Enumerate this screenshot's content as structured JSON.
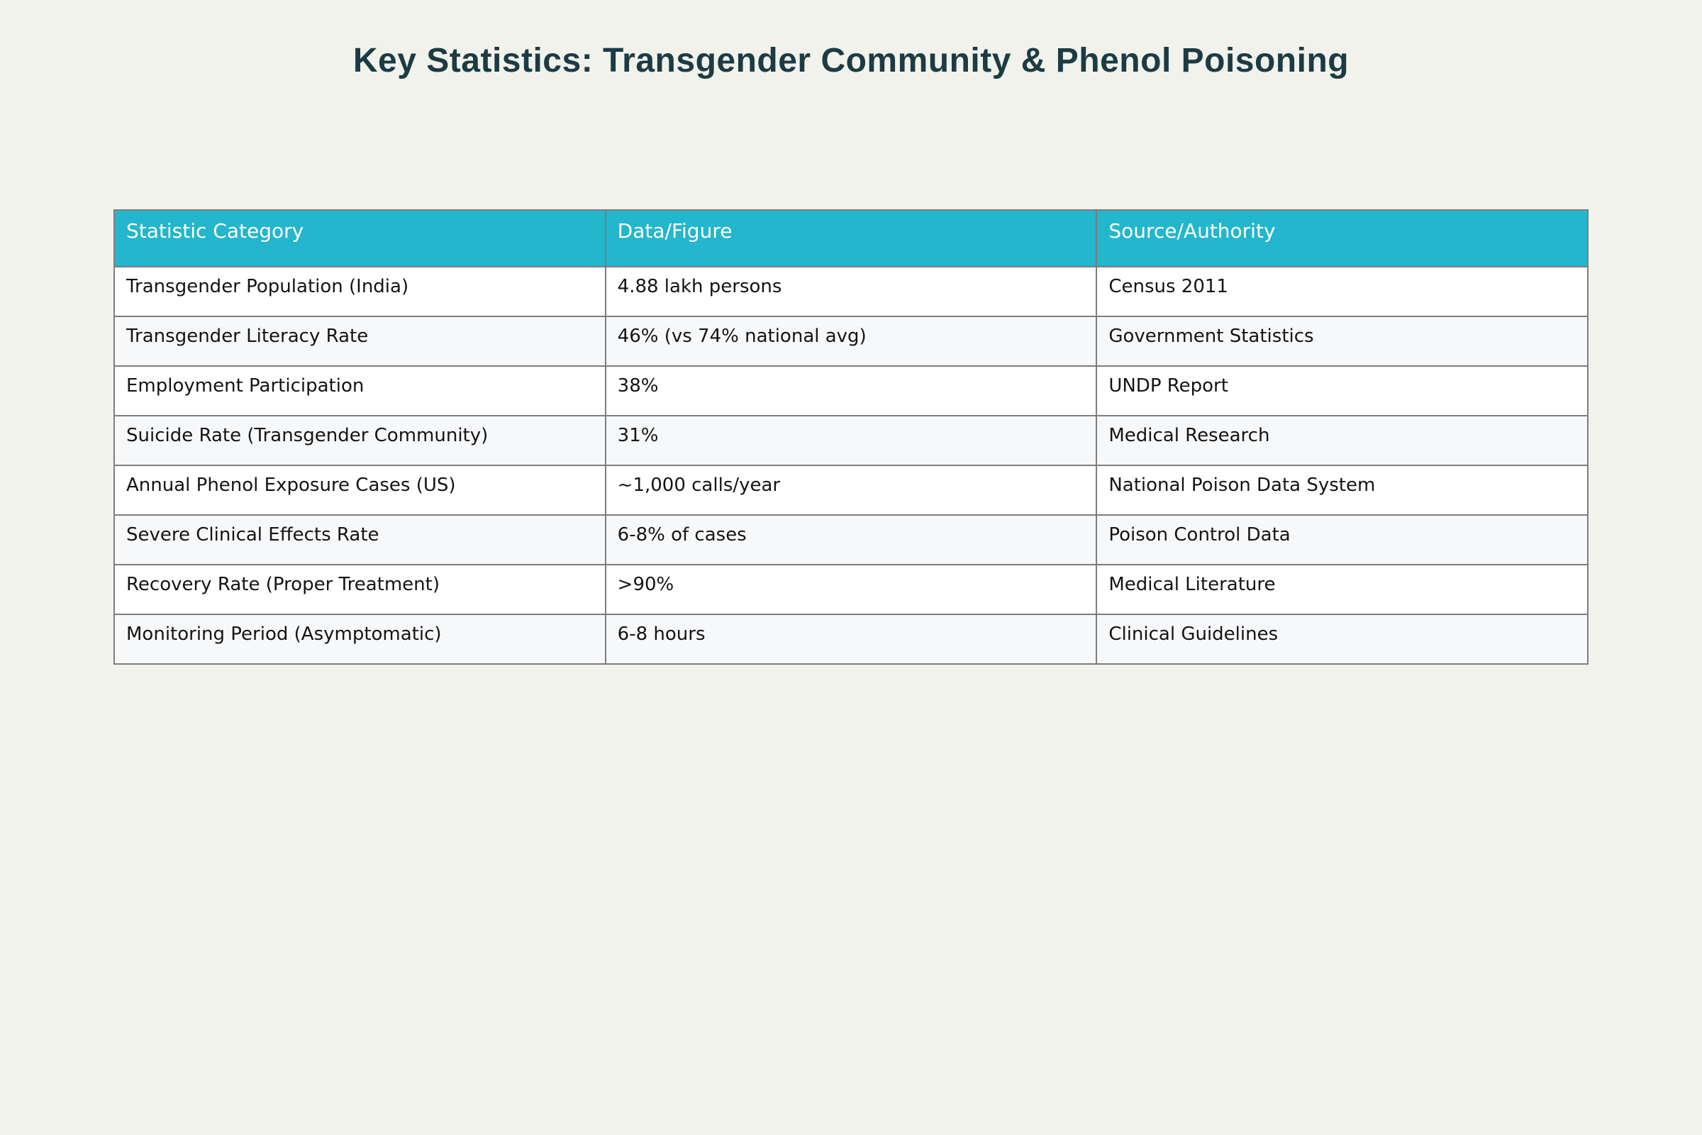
{
  "page": {
    "background_color": "#f1f2ec",
    "title_color": "#1c3b42"
  },
  "chart_data": {
    "type": "table",
    "title": "Key Statistics: Transgender Community & Phenol Poisoning",
    "columns": [
      "Statistic Category",
      "Data/Figure",
      "Source/Authority"
    ],
    "rows": [
      [
        "Transgender Population (India)",
        "4.88 lakh persons",
        "Census 2011"
      ],
      [
        "Transgender Literacy Rate",
        "46% (vs 74% national avg)",
        "Government Statistics"
      ],
      [
        "Employment Participation",
        "38%",
        "UNDP Report"
      ],
      [
        "Suicide Rate (Transgender Community)",
        "31%",
        "Medical Research"
      ],
      [
        "Annual Phenol Exposure Cases (US)",
        "~1,000 calls/year",
        "National Poison Data System"
      ],
      [
        "Severe Clinical Effects Rate",
        "6-8% of cases",
        "Poison Control Data"
      ],
      [
        "Recovery Rate (Proper Treatment)",
        ">90%",
        "Medical Literature"
      ],
      [
        "Monitoring Period (Asymptomatic)",
        "6-8 hours",
        "Clinical Guidelines"
      ]
    ],
    "layout": {
      "header_bg": "#23b6cc",
      "header_text_color": "#ffffff",
      "row_bg": "#ffffff",
      "row_alt_bg": "#f7f8fa",
      "border_color": "#7d7d7d",
      "grid": true,
      "legend": "none"
    }
  }
}
